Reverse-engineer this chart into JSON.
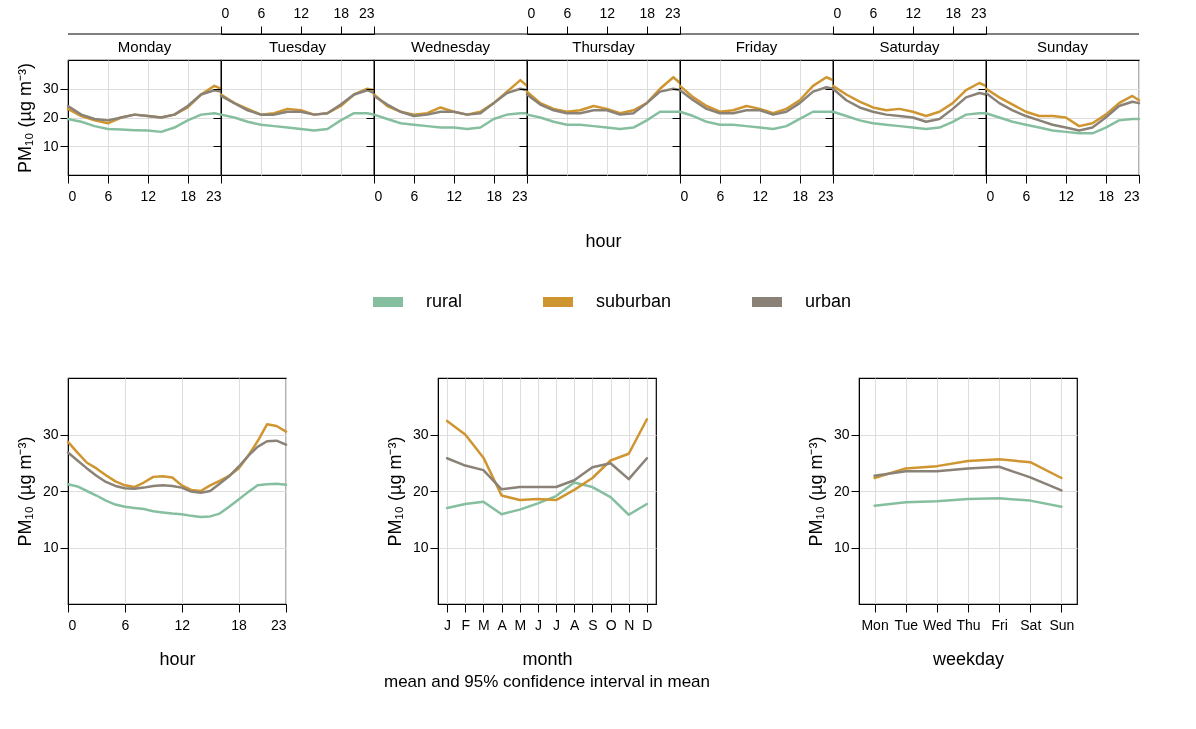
{
  "chart_data": [
    {
      "type": "line",
      "title": "Monday",
      "ylabel": "PM₁₀ (µg m⁻³)",
      "legend": "bottom",
      "x": [
        0,
        2,
        4,
        6,
        8,
        10,
        12,
        14,
        16,
        18,
        20,
        22,
        23
      ],
      "xlim": [
        0,
        23
      ],
      "xticks": [
        0,
        6,
        12,
        18,
        23
      ],
      "ylim": [
        0,
        40
      ],
      "yticks": [
        10,
        20,
        30
      ],
      "grid": true,
      "series": [
        {
          "name": "rural",
          "color": "#86bf9f",
          "values": [
            19.5,
            18.5,
            17,
            16,
            15.8,
            15.6,
            15.5,
            15,
            16.5,
            19,
            21,
            21.5,
            21
          ]
        },
        {
          "name": "suburban",
          "color": "#cf9530",
          "values": [
            23,
            20.5,
            19,
            18,
            20,
            21,
            20.5,
            20,
            21,
            23.5,
            28,
            31,
            30
          ]
        },
        {
          "name": "urban",
          "color": "#8a8277",
          "values": [
            24,
            21,
            19.5,
            19,
            20,
            21,
            20.5,
            20,
            21,
            24,
            28,
            29.5,
            29
          ]
        }
      ]
    },
    {
      "type": "line",
      "title": "Tuesday",
      "x": [
        0,
        2,
        4,
        6,
        8,
        10,
        12,
        14,
        16,
        18,
        20,
        22,
        23
      ],
      "xlim": [
        0,
        23
      ],
      "xticks": [
        0,
        6,
        12,
        18,
        23
      ],
      "ylim": [
        0,
        40
      ],
      "yticks": [
        10,
        20,
        30
      ],
      "grid": true,
      "tick_labels": "x",
      "legend": "bottom",
      "series": [
        {
          "name": "rural",
          "color": "#86bf9f",
          "values": [
            21,
            20,
            18.5,
            17.5,
            17,
            16.5,
            16,
            15.5,
            16,
            19,
            21.5,
            21.5,
            21
          ]
        },
        {
          "name": "suburban",
          "color": "#cf9530",
          "values": [
            28,
            25,
            23,
            21,
            21.5,
            23,
            22.5,
            21,
            21.5,
            24,
            28,
            30,
            29.5
          ]
        },
        {
          "name": "urban",
          "color": "#8a8277",
          "values": [
            27.5,
            25,
            22.5,
            21,
            21,
            22,
            22,
            21,
            21.5,
            24.5,
            28,
            29.5,
            28.5
          ]
        }
      ]
    },
    {
      "type": "line",
      "title": "Wednesday",
      "legend": "bottom",
      "x": [
        0,
        2,
        4,
        6,
        8,
        10,
        12,
        14,
        16,
        18,
        20,
        22,
        23
      ],
      "xlim": [
        0,
        23
      ],
      "xticks": [
        0,
        6,
        12,
        18,
        23
      ],
      "ylim": [
        0,
        40
      ],
      "yticks": [
        10,
        20,
        30
      ],
      "grid": true,
      "tick_labels": "x",
      "series": [
        {
          "name": "rural",
          "color": "#86bf9f",
          "values": [
            21,
            19.5,
            18,
            17.5,
            17,
            16.5,
            16.5,
            16,
            16.5,
            19.5,
            21,
            21.5,
            21.5
          ]
        },
        {
          "name": "suburban",
          "color": "#cf9530",
          "values": [
            28,
            24,
            22,
            21,
            21.5,
            23.5,
            22,
            21,
            22,
            25,
            29,
            33,
            31
          ]
        },
        {
          "name": "urban",
          "color": "#8a8277",
          "values": [
            27.5,
            24.5,
            22,
            20.5,
            21,
            22,
            22,
            21,
            21.5,
            25,
            28.5,
            30,
            29.5
          ]
        }
      ]
    },
    {
      "type": "line",
      "title": "Thursday",
      "xlabel": "hour",
      "legend": "bottom",
      "x": [
        0,
        2,
        4,
        6,
        8,
        10,
        12,
        14,
        16,
        18,
        20,
        22,
        23
      ],
      "xlim": [
        0,
        23
      ],
      "xticks": [
        0,
        6,
        12,
        18,
        23
      ],
      "ylim": [
        0,
        40
      ],
      "yticks": [
        10,
        20,
        30
      ],
      "grid": true,
      "tick_labels": "x",
      "series": [
        {
          "name": "rural",
          "color": "#86bf9f",
          "values": [
            21,
            20,
            18.5,
            17.5,
            17.5,
            17,
            16.5,
            16,
            16.5,
            19,
            22,
            22,
            22
          ]
        },
        {
          "name": "suburban",
          "color": "#cf9530",
          "values": [
            29,
            25,
            23,
            22,
            22.5,
            24,
            23,
            21.5,
            22.5,
            25,
            30,
            34,
            32
          ]
        },
        {
          "name": "urban",
          "color": "#8a8277",
          "values": [
            28,
            24.5,
            22.5,
            21.5,
            21.5,
            22.5,
            22.5,
            21,
            21.5,
            25,
            29,
            30,
            29.5
          ]
        }
      ]
    },
    {
      "type": "line",
      "title": "Friday",
      "legend": "bottom",
      "x": [
        0,
        2,
        4,
        6,
        8,
        10,
        12,
        14,
        16,
        18,
        20,
        22,
        23
      ],
      "xlim": [
        0,
        23
      ],
      "xticks": [
        0,
        6,
        12,
        18,
        23
      ],
      "ylim": [
        0,
        40
      ],
      "yticks": [
        10,
        20,
        30
      ],
      "grid": true,
      "tick_labels": "x",
      "series": [
        {
          "name": "rural",
          "color": "#86bf9f",
          "values": [
            22,
            20.5,
            18.5,
            17.5,
            17.5,
            17,
            16.5,
            16,
            17,
            19.5,
            22,
            22,
            22
          ]
        },
        {
          "name": "suburban",
          "color": "#cf9530",
          "values": [
            31,
            27,
            24,
            22,
            22.5,
            24,
            23,
            21.5,
            23,
            26,
            31,
            34,
            33
          ]
        },
        {
          "name": "urban",
          "color": "#8a8277",
          "values": [
            29.5,
            26,
            23,
            21.5,
            21.5,
            22.5,
            22.5,
            21,
            22,
            25,
            29,
            30.5,
            30
          ]
        }
      ]
    },
    {
      "type": "line",
      "title": "Saturday",
      "x": [
        0,
        2,
        4,
        6,
        8,
        10,
        12,
        14,
        16,
        18,
        20,
        22,
        23
      ],
      "xlim": [
        0,
        23
      ],
      "xticks": [
        0,
        6,
        12,
        18,
        23
      ],
      "ylim": [
        0,
        40
      ],
      "yticks": [
        10,
        20,
        30
      ],
      "grid": true,
      "tick_labels": "x",
      "legend": "bottom",
      "series": [
        {
          "name": "rural",
          "color": "#86bf9f",
          "values": [
            22,
            20.5,
            19,
            18,
            17.5,
            17,
            16.5,
            16,
            16.5,
            18.5,
            21,
            21.5,
            21.5
          ]
        },
        {
          "name": "suburban",
          "color": "#cf9530",
          "values": [
            31,
            28,
            25.5,
            23.5,
            22.5,
            23,
            22,
            20.5,
            22,
            25,
            29.5,
            32,
            31
          ]
        },
        {
          "name": "urban",
          "color": "#8a8277",
          "values": [
            30,
            26,
            23.5,
            22,
            21,
            20.5,
            20,
            18.5,
            19.5,
            23,
            27,
            28.5,
            28
          ]
        }
      ]
    },
    {
      "type": "line",
      "title": "Sunday",
      "legend": "bottom",
      "x": [
        0,
        2,
        4,
        6,
        8,
        10,
        12,
        14,
        16,
        18,
        20,
        22,
        23
      ],
      "xlim": [
        0,
        23
      ],
      "xticks": [
        0,
        6,
        12,
        18,
        23
      ],
      "ylim": [
        0,
        40
      ],
      "yticks": [
        10,
        20,
        30
      ],
      "grid": true,
      "tick_labels": "x",
      "series": [
        {
          "name": "rural",
          "color": "#86bf9f",
          "values": [
            21.5,
            20,
            18.5,
            17.5,
            16.5,
            15.5,
            15,
            14.5,
            14.5,
            16.5,
            19,
            19.5,
            19.5
          ]
        },
        {
          "name": "suburban",
          "color": "#cf9530",
          "values": [
            30,
            27,
            24.5,
            22,
            20.5,
            20.5,
            20,
            17,
            18,
            21,
            25,
            27.5,
            26
          ]
        },
        {
          "name": "urban",
          "color": "#8a8277",
          "values": [
            28.5,
            25,
            22.5,
            20.5,
            19,
            17.5,
            16.5,
            15.5,
            16.5,
            20,
            24,
            25.5,
            25
          ]
        }
      ]
    },
    {
      "type": "line",
      "legend": "bottom",
      "xlabel": "hour",
      "ylabel": "PM₁₀ (µg m⁻³)",
      "x": [
        0,
        1,
        2,
        3,
        4,
        5,
        6,
        7,
        8,
        9,
        10,
        11,
        12,
        13,
        14,
        15,
        16,
        17,
        18,
        19,
        20,
        21,
        22,
        23
      ],
      "xlim": [
        0,
        23
      ],
      "xticks": [
        0,
        6,
        12,
        18,
        23
      ],
      "ylim": [
        0,
        40
      ],
      "yticks": [
        10,
        20,
        30
      ],
      "grid": true,
      "series": [
        {
          "name": "rural",
          "color": "#86bf9f",
          "values": [
            21.2,
            20.8,
            20,
            19.2,
            18.3,
            17.6,
            17.2,
            17,
            16.8,
            16.4,
            16.2,
            16,
            15.9,
            15.6,
            15.4,
            15.5,
            16,
            17.2,
            18.5,
            19.8,
            21,
            21.2,
            21.3,
            21.1
          ]
        },
        {
          "name": "suburban",
          "color": "#cf9530",
          "values": [
            28.7,
            26.8,
            25,
            24,
            22.8,
            21.7,
            21,
            20.7,
            21.5,
            22.5,
            22.6,
            22.4,
            21,
            20.2,
            20,
            21,
            21.8,
            22.7,
            24,
            26.2,
            28.8,
            31.8,
            31.5,
            30.5
          ]
        },
        {
          "name": "urban",
          "color": "#8a8277",
          "values": [
            26.8,
            25.4,
            24,
            22.7,
            21.6,
            20.9,
            20.5,
            20.4,
            20.6,
            20.9,
            21,
            20.9,
            20.6,
            19.9,
            19.7,
            20,
            21.3,
            22.6,
            24.3,
            26.2,
            27.8,
            28.8,
            28.9,
            28.2
          ]
        }
      ]
    },
    {
      "type": "line",
      "legend": "bottom",
      "xlabel": "month",
      "ylabel": "PM₁₀ (µg m⁻³)",
      "categories": [
        "J",
        "F",
        "M",
        "A",
        "M",
        "J",
        "J",
        "A",
        "S",
        "O",
        "N",
        "D"
      ],
      "ylim": [
        0,
        40
      ],
      "yticks": [
        10,
        20,
        30
      ],
      "grid": true,
      "annotations": [
        "mean and 95% confidence interval in mean"
      ],
      "series": [
        {
          "name": "rural",
          "color": "#86bf9f",
          "values": [
            17,
            17.7,
            18.1,
            15.9,
            16.7,
            17.8,
            19.1,
            21.5,
            20.7,
            18.9,
            15.8,
            17.7
          ]
        },
        {
          "name": "suburban",
          "color": "#cf9530",
          "values": [
            32.4,
            30,
            25.9,
            19.2,
            18.4,
            18.6,
            18.4,
            20.2,
            22.3,
            25.4,
            26.6,
            32.7
          ]
        },
        {
          "name": "urban",
          "color": "#8a8277",
          "values": [
            25.8,
            24.5,
            23.7,
            20.3,
            20.7,
            20.7,
            20.7,
            21.9,
            24.2,
            24.9,
            22.1,
            25.8
          ]
        }
      ]
    },
    {
      "type": "line",
      "legend": "bottom",
      "xlabel": "weekday",
      "ylabel": "PM₁₀ (µg m⁻³)",
      "categories": [
        "Mon",
        "Tue",
        "Wed",
        "Thu",
        "Fri",
        "Sat",
        "Sun"
      ],
      "ylim": [
        0,
        40
      ],
      "yticks": [
        10,
        20,
        30
      ],
      "grid": true,
      "series": [
        {
          "name": "rural",
          "color": "#86bf9f",
          "values": [
            17.4,
            18,
            18.2,
            18.6,
            18.7,
            18.3,
            17.2
          ]
        },
        {
          "name": "suburban",
          "color": "#cf9530",
          "values": [
            22.3,
            24,
            24.4,
            25.3,
            25.6,
            25.1,
            22.3
          ]
        },
        {
          "name": "urban",
          "color": "#8a8277",
          "values": [
            22.7,
            23.5,
            23.5,
            24,
            24.3,
            22.4,
            20.1
          ]
        }
      ]
    }
  ]
}
